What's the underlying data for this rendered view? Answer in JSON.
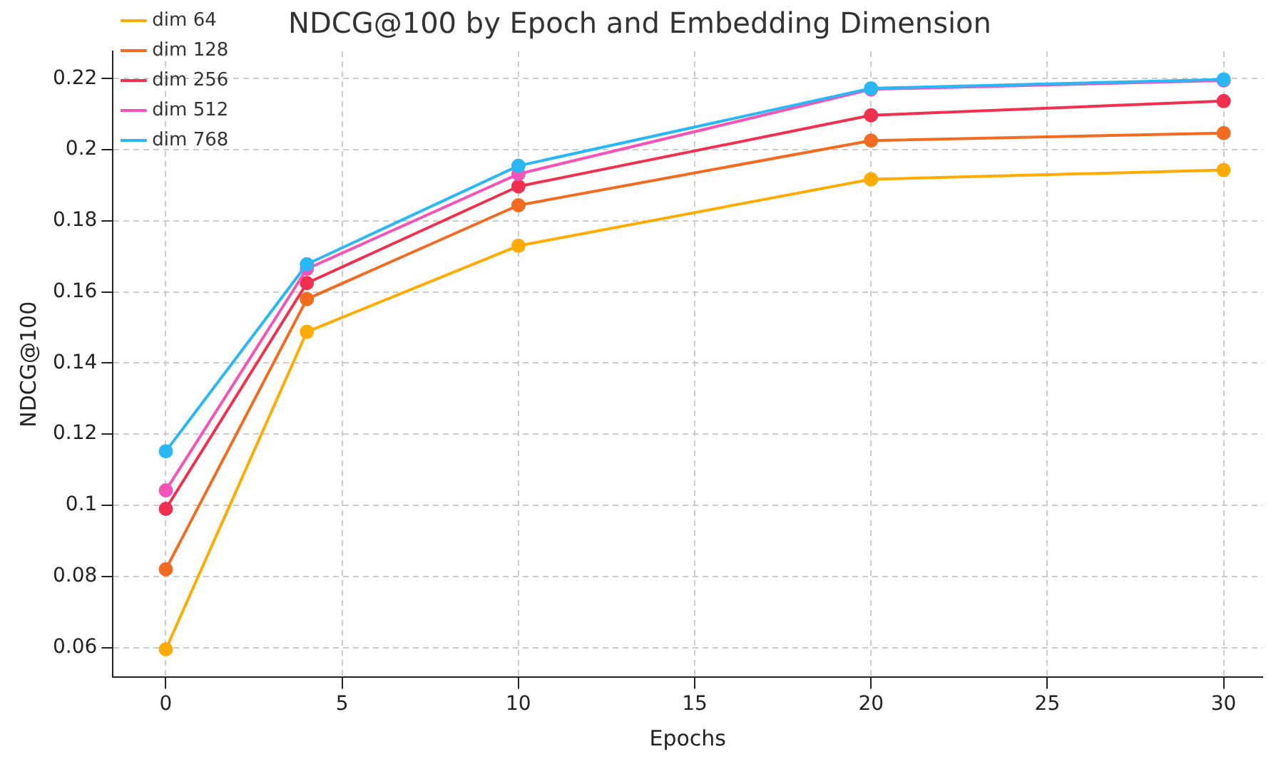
{
  "chart_data": {
    "type": "line",
    "title": "NDCG@100 by Epoch and Embedding Dimension",
    "xlabel": "Epochs",
    "ylabel": "NDCG@100",
    "x": [
      0,
      4,
      10,
      20,
      30
    ],
    "series": [
      {
        "name": "dim 64",
        "color": "#ffab00",
        "values": [
          0.0595,
          0.1488,
          0.173,
          0.1917,
          0.1943
        ]
      },
      {
        "name": "dim 128",
        "color": "#f26b21",
        "values": [
          0.082,
          0.158,
          0.1844,
          0.2026,
          0.2047
        ]
      },
      {
        "name": "dim 256",
        "color": "#f0304f",
        "values": [
          0.099,
          0.1625,
          0.1897,
          0.2097,
          0.2137
        ]
      },
      {
        "name": "dim 512",
        "color": "#f653b8",
        "values": [
          0.1042,
          0.1665,
          0.1932,
          0.217,
          0.2195
        ]
      },
      {
        "name": "dim 768",
        "color": "#29b8f5",
        "values": [
          0.1152,
          0.1678,
          0.1955,
          0.2173,
          0.2198
        ]
      }
    ],
    "xlim": [
      -1.5,
      31.1
    ],
    "ylim": [
      0.0516,
      0.2277
    ],
    "xticks": [
      0,
      5,
      10,
      15,
      20,
      25,
      30
    ],
    "yticks": [
      0.06,
      0.08,
      0.1,
      0.12,
      0.14,
      0.16,
      0.18,
      0.2,
      0.22
    ],
    "grid": true,
    "legend": "top left",
    "marker": "circle",
    "line_style": "solid"
  }
}
